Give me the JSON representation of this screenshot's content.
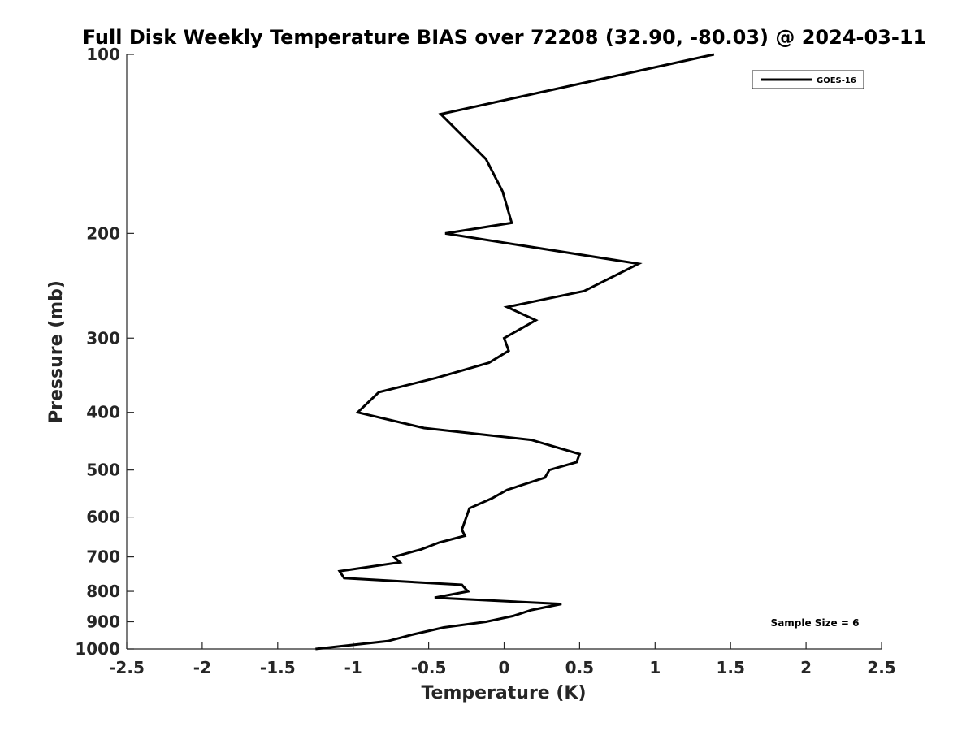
{
  "chart_data": {
    "type": "line",
    "title": "Full Disk Weekly Temperature BIAS over 72208 (32.90, -80.03) @ 2024-03-11",
    "xlabel": "Temperature (K)",
    "ylabel": "Pressure (mb)",
    "xlim": [
      -2.5,
      2.5
    ],
    "ylim": [
      100,
      1000
    ],
    "y_scale": "log",
    "y_reversed": true,
    "x_ticks": [
      "-2.5",
      "-2",
      "-1.5",
      "-1",
      "-0.5",
      "0",
      "0.5",
      "1",
      "1.5",
      "2",
      "2.5"
    ],
    "y_ticks": [
      "100",
      "200",
      "300",
      "400",
      "500",
      "600",
      "700",
      "800",
      "900",
      "1000"
    ],
    "grid": false,
    "legend_position": "top-right",
    "annotation": "Sample Size = 6",
    "series": [
      {
        "name": "GOES-16",
        "color": "#000000",
        "points": [
          {
            "t": 1.39,
            "p": 100
          },
          {
            "t": -0.42,
            "p": 126
          },
          {
            "t": -0.12,
            "p": 150
          },
          {
            "t": -0.01,
            "p": 170
          },
          {
            "t": 0.05,
            "p": 192
          },
          {
            "t": -0.39,
            "p": 200
          },
          {
            "t": 0.89,
            "p": 225
          },
          {
            "t": 0.53,
            "p": 250
          },
          {
            "t": 0.02,
            "p": 266
          },
          {
            "t": 0.21,
            "p": 280
          },
          {
            "t": 0.0,
            "p": 300
          },
          {
            "t": 0.03,
            "p": 315
          },
          {
            "t": -0.1,
            "p": 330
          },
          {
            "t": -0.45,
            "p": 350
          },
          {
            "t": -0.83,
            "p": 370
          },
          {
            "t": -0.97,
            "p": 400
          },
          {
            "t": -0.53,
            "p": 425
          },
          {
            "t": 0.18,
            "p": 445
          },
          {
            "t": 0.5,
            "p": 470
          },
          {
            "t": 0.48,
            "p": 485
          },
          {
            "t": 0.3,
            "p": 500
          },
          {
            "t": 0.27,
            "p": 515
          },
          {
            "t": 0.02,
            "p": 540
          },
          {
            "t": -0.08,
            "p": 558
          },
          {
            "t": -0.23,
            "p": 580
          },
          {
            "t": -0.28,
            "p": 630
          },
          {
            "t": -0.26,
            "p": 645
          },
          {
            "t": -0.43,
            "p": 662
          },
          {
            "t": -0.55,
            "p": 680
          },
          {
            "t": -0.73,
            "p": 700
          },
          {
            "t": -0.69,
            "p": 715
          },
          {
            "t": -1.09,
            "p": 740
          },
          {
            "t": -1.06,
            "p": 760
          },
          {
            "t": -0.28,
            "p": 780
          },
          {
            "t": -0.24,
            "p": 800
          },
          {
            "t": -0.46,
            "p": 820
          },
          {
            "t": 0.38,
            "p": 840
          },
          {
            "t": 0.18,
            "p": 860
          },
          {
            "t": 0.06,
            "p": 880
          },
          {
            "t": -0.12,
            "p": 900
          },
          {
            "t": -0.4,
            "p": 920
          },
          {
            "t": -0.6,
            "p": 945
          },
          {
            "t": -0.77,
            "p": 970
          },
          {
            "t": -1.25,
            "p": 1000
          }
        ]
      }
    ]
  }
}
